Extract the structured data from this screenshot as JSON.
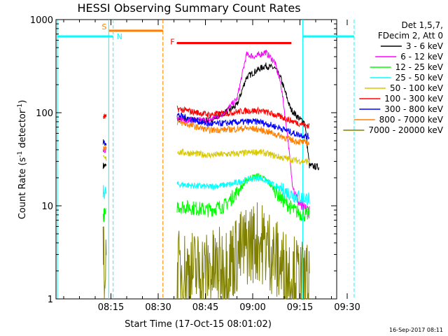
{
  "chart_data": {
    "type": "line",
    "title": "HESSI Observing Summary Count Rates",
    "xlabel": "Start Time (17-Oct-15 08:01:02)",
    "ylabel_main": "Count Rate (s",
    "ylabel_sup1": "-1",
    "ylabel_mid": " detector",
    "ylabel_sup2": "-1",
    "ylabel_end": ")",
    "yscale": "log",
    "ylim": [
      1,
      1000
    ],
    "xlim_min": [
      0,
      80
    ],
    "x_ticks": [
      {
        "min": 14,
        "label": "08:15"
      },
      {
        "min": 29,
        "label": "08:30"
      },
      {
        "min": 44,
        "label": "08:45"
      },
      {
        "min": 59,
        "label": "09:00"
      },
      {
        "min": 74,
        "label": "09:15"
      },
      {
        "min": 89,
        "label": "09:30"
      }
    ],
    "y_ticks": [
      {
        "v": 1,
        "label": "1"
      },
      {
        "v": 10,
        "label": "10"
      },
      {
        "v": 100,
        "label": "100"
      },
      {
        "v": 1000,
        "label": "1000"
      }
    ],
    "legend_header": [
      "Det 1,5,7,",
      "FDecim 2, Att 0"
    ],
    "series": [
      {
        "name": "3 - 6 keV",
        "color": "#000000",
        "segments": [
          [
            [
              11.5,
              27
            ],
            [
              12.5,
              27
            ]
          ],
          [
            [
              35,
              85
            ],
            [
              45,
              82
            ],
            [
              50,
              100
            ],
            [
              54,
              120
            ],
            [
              57,
              240
            ],
            [
              60,
              280
            ],
            [
              63,
              320
            ],
            [
              66,
              300
            ],
            [
              68,
              230
            ],
            [
              71,
              110
            ],
            [
              74,
              85
            ],
            [
              75.5,
              80
            ],
            [
              77,
              27
            ],
            [
              80,
              26
            ]
          ]
        ]
      },
      {
        "name": "6 - 12 keV",
        "color": "#ff00ff",
        "segments": [
          [
            [
              11.5,
              40
            ],
            [
              12.5,
              40
            ]
          ],
          [
            [
              35,
              85
            ],
            [
              45,
              82
            ],
            [
              50,
              100
            ],
            [
              54,
              140
            ],
            [
              57,
              420
            ],
            [
              60,
              400
            ],
            [
              63,
              450
            ],
            [
              66,
              350
            ],
            [
              68,
              200
            ],
            [
              70,
              60
            ],
            [
              71.5,
              18
            ],
            [
              73,
              12
            ],
            [
              75,
              9
            ],
            [
              77,
              9
            ]
          ]
        ]
      },
      {
        "name": "12 - 25 keV",
        "color": "#00ff00",
        "segments": [
          [
            [
              11.5,
              8
            ],
            [
              12.5,
              8
            ]
          ],
          [
            [
              35,
              10
            ],
            [
              45,
              9
            ],
            [
              50,
              10
            ],
            [
              54,
              14
            ],
            [
              58,
              20
            ],
            [
              61,
              21
            ],
            [
              64,
              18
            ],
            [
              68,
              12
            ],
            [
              72,
              9
            ],
            [
              75,
              8
            ],
            [
              77,
              8
            ]
          ]
        ]
      },
      {
        "name": "25 - 50 keV",
        "color": "#00ffff",
        "segments": [
          [
            [
              11.5,
              14
            ],
            [
              12.5,
              14
            ]
          ],
          [
            [
              35,
              17
            ],
            [
              45,
              16
            ],
            [
              52,
              17
            ],
            [
              57,
              19
            ],
            [
              61,
              20
            ],
            [
              64,
              18
            ],
            [
              68,
              15
            ],
            [
              72,
              13
            ],
            [
              75,
              12
            ],
            [
              77,
              12
            ]
          ]
        ]
      },
      {
        "name": "50 - 100 keV",
        "color": "#d8c800",
        "segments": [
          [
            [
              11.5,
              32
            ],
            [
              12.5,
              32
            ]
          ],
          [
            [
              35,
              38
            ],
            [
              45,
              35
            ],
            [
              52,
              36
            ],
            [
              57,
              37
            ],
            [
              61,
              38
            ],
            [
              64,
              36
            ],
            [
              68,
              33
            ],
            [
              72,
              31
            ],
            [
              75,
              30
            ],
            [
              77,
              30
            ]
          ]
        ]
      },
      {
        "name": "100 - 300 keV",
        "color": "#ff0000",
        "segments": [
          [
            [
              11.5,
              90
            ],
            [
              12.5,
              90
            ]
          ],
          [
            [
              35,
              110
            ],
            [
              45,
              95
            ],
            [
              52,
              100
            ],
            [
              57,
              105
            ],
            [
              61,
              105
            ],
            [
              64,
              100
            ],
            [
              68,
              90
            ],
            [
              72,
              80
            ],
            [
              75,
              75
            ],
            [
              77,
              72
            ]
          ]
        ]
      },
      {
        "name": "300 - 800 keV",
        "color": "#0000ff",
        "segments": [
          [
            [
              11.5,
              48
            ],
            [
              12.5,
              48
            ]
          ],
          [
            [
              35,
              95
            ],
            [
              45,
              75
            ],
            [
              52,
              78
            ],
            [
              57,
              80
            ],
            [
              61,
              80
            ],
            [
              64,
              75
            ],
            [
              68,
              68
            ],
            [
              72,
              60
            ],
            [
              75,
              57
            ],
            [
              77,
              55
            ]
          ]
        ]
      },
      {
        "name": "800 - 7000 keV",
        "color": "#ff8000",
        "segments": [
          [
            [
              11.5,
              42
            ],
            [
              12.5,
              42
            ]
          ],
          [
            [
              35,
              80
            ],
            [
              45,
              65
            ],
            [
              52,
              66
            ],
            [
              57,
              68
            ],
            [
              61,
              66
            ],
            [
              64,
              62
            ],
            [
              68,
              56
            ],
            [
              72,
              50
            ],
            [
              75,
              48
            ],
            [
              77,
              47
            ]
          ]
        ]
      },
      {
        "name": "7000 - 20000 keV",
        "color": "#808000",
        "segments": [
          [
            [
              11.5,
              2.3
            ],
            [
              12.5,
              2.3
            ]
          ],
          [
            [
              35,
              2
            ],
            [
              45,
              2
            ],
            [
              50,
              2.2
            ],
            [
              54,
              3
            ],
            [
              58,
              4
            ],
            [
              61,
              4.2
            ],
            [
              64,
              3.5
            ],
            [
              68,
              2.2
            ],
            [
              72,
              1.8
            ],
            [
              75,
              1.5
            ],
            [
              77,
              1.5
            ]
          ]
        ]
      }
    ],
    "bands": [
      {
        "label": "S",
        "color": "#ff8000",
        "x1": 13.3,
        "x2": 30.5,
        "v": 760
      },
      {
        "label": "F",
        "color": "#ff0000",
        "x1": 34.9,
        "x2": 71.3,
        "v": 560
      },
      {
        "label": "",
        "color": "#00ffff",
        "x1": -3,
        "x2": 14.7,
        "v": 660
      },
      {
        "label": "",
        "color": "#00ffff",
        "x1": 74.9,
        "x2": 91.2,
        "v": 660
      }
    ],
    "marker_N": "N",
    "vlines": [
      {
        "min": -3,
        "color": "#00ffff",
        "dashed": false
      },
      {
        "min": 13.3,
        "color": "#00ffff",
        "dashed": false
      },
      {
        "min": 14.7,
        "color": "#00ffff",
        "dashed": true
      },
      {
        "min": 30.5,
        "color": "#ff8000",
        "dashed": true
      },
      {
        "min": 74.9,
        "color": "#00ffff",
        "dashed": false
      },
      {
        "min": 91.2,
        "color": "#00ffff",
        "dashed": true
      }
    ]
  },
  "footer_date": "16-Sep-2017 08:11"
}
